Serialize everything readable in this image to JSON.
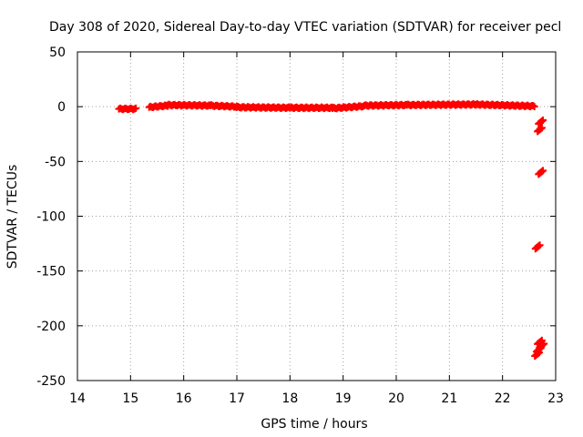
{
  "chart_data": {
    "type": "scatter",
    "title": "Day 308 of 2020, Sidereal Day-to-day VTEC variation (SDTVAR) for receiver pecl",
    "xlabel": "GPS time / hours",
    "ylabel": "SDTVAR / TECUs",
    "xlim": [
      14,
      23
    ],
    "ylim": [
      -250,
      50
    ],
    "xticks": [
      "14",
      "15",
      "16",
      "17",
      "18",
      "19",
      "20",
      "21",
      "22",
      "23"
    ],
    "yticks": [
      "50",
      "0",
      "-50",
      "-100",
      "-150",
      "-200",
      "-250"
    ],
    "grid": true,
    "marker_color": "#ff0000",
    "series": [
      {
        "name": "SDTVAR",
        "segments": [
          {
            "x_start": 14.78,
            "x_end": 15.1,
            "y_start": -2.0,
            "y_end": -2.0
          },
          {
            "x_start": 15.35,
            "x_end": 15.7,
            "y_start": -0.5,
            "y_end": 1.0
          },
          {
            "x_start": 15.7,
            "x_end": 16.5,
            "y_start": 1.5,
            "y_end": 1.0
          },
          {
            "x_start": 16.5,
            "x_end": 17.0,
            "y_start": 1.0,
            "y_end": 0.0
          },
          {
            "x_start": 17.0,
            "x_end": 18.0,
            "y_start": -0.5,
            "y_end": -1.0
          },
          {
            "x_start": 18.0,
            "x_end": 18.8,
            "y_start": -1.0,
            "y_end": -1.0
          },
          {
            "x_start": 18.8,
            "x_end": 19.4,
            "y_start": -1.5,
            "y_end": 0.5
          },
          {
            "x_start": 19.4,
            "x_end": 20.2,
            "y_start": 1.0,
            "y_end": 1.5
          },
          {
            "x_start": 20.2,
            "x_end": 21.5,
            "y_start": 1.5,
            "y_end": 2.0
          },
          {
            "x_start": 21.5,
            "x_end": 22.6,
            "y_start": 2.0,
            "y_end": 0.5
          }
        ],
        "points": [
          {
            "x": 22.72,
            "y": -14
          },
          {
            "x": 22.7,
            "y": -21
          },
          {
            "x": 22.72,
            "y": -60
          },
          {
            "x": 22.66,
            "y": -128
          },
          {
            "x": 22.7,
            "y": -215
          },
          {
            "x": 22.74,
            "y": -218
          },
          {
            "x": 22.68,
            "y": -222
          },
          {
            "x": 22.65,
            "y": -226
          }
        ]
      }
    ]
  }
}
